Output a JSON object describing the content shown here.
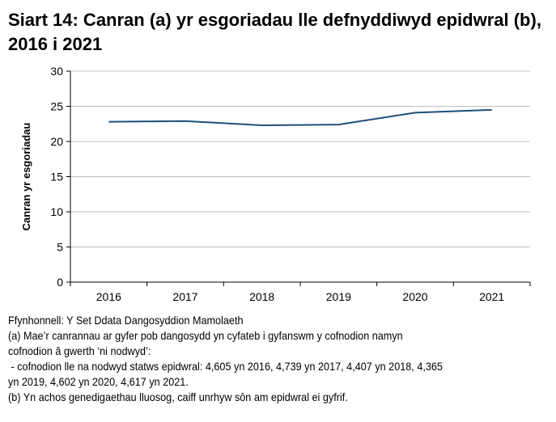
{
  "chart_data": {
    "type": "line",
    "title": "Siart 14: Canran (a) yr esgoriadau lle defnyddiwyd epidwral (b), 2016 i 2021",
    "xlabel": "",
    "ylabel": "Canran yr esgoriadau",
    "categories": [
      "2016",
      "2017",
      "2018",
      "2019",
      "2020",
      "2021"
    ],
    "series": [
      {
        "values": [
          22.8,
          22.9,
          22.3,
          22.4,
          24.1,
          24.5
        ],
        "color": "#1f4e79"
      }
    ],
    "ylim": [
      0,
      30
    ],
    "yticks": [
      0,
      5,
      10,
      15,
      20,
      25,
      30
    ],
    "grid": true,
    "legend": "none"
  },
  "notes": [
    "Ffynhonnell: Y Set Ddata Dangosyddion Mamolaeth",
    "(a) Mae’r canrannau ar gyfer pob dangosydd yn cyfateb i gyfanswm y cofnodion namyn",
    "cofnodion â gwerth ‘ni nodwyd’:",
    " - cofnodion lle na nodwyd statws epidwral: 4,605 yn 2016, 4,739 yn 2017, 4,407 yn 2018, 4,365",
    "yn 2019, 4,602 yn 2020, 4,617 yn 2021.",
    "(b) Yn achos genedigaethau lluosog, caiff unrhyw sôn am epidwral ei gyfrif."
  ]
}
